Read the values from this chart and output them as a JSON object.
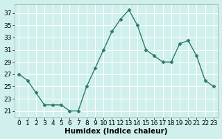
{
  "x": [
    0,
    1,
    2,
    3,
    4,
    5,
    6,
    7,
    8,
    9,
    10,
    11,
    12,
    13,
    14,
    15,
    16,
    17,
    18,
    19,
    20,
    21,
    22,
    23
  ],
  "y": [
    27,
    26,
    24,
    22,
    22,
    22,
    21,
    21,
    25,
    28,
    31,
    34,
    36,
    37.5,
    35,
    31,
    30,
    29,
    29,
    32,
    32.5,
    30,
    26,
    25
  ],
  "line_color": "#2d7a6a",
  "marker": "D",
  "marker_size": 2.5,
  "bg_color": "#cff0ec",
  "grid_color": "#ffffff",
  "grid_minor_color": "#e8f8f6",
  "xlabel": "Humidex (Indice chaleur)",
  "ylabel_ticks": [
    21,
    23,
    25,
    27,
    29,
    31,
    33,
    35,
    37
  ],
  "ylim": [
    20.0,
    38.5
  ],
  "xlim": [
    -0.5,
    23.5
  ],
  "xlabel_fontsize": 7.5,
  "tick_fontsize": 6.5,
  "line_width": 1.0,
  "spine_color": "#aaaaaa"
}
